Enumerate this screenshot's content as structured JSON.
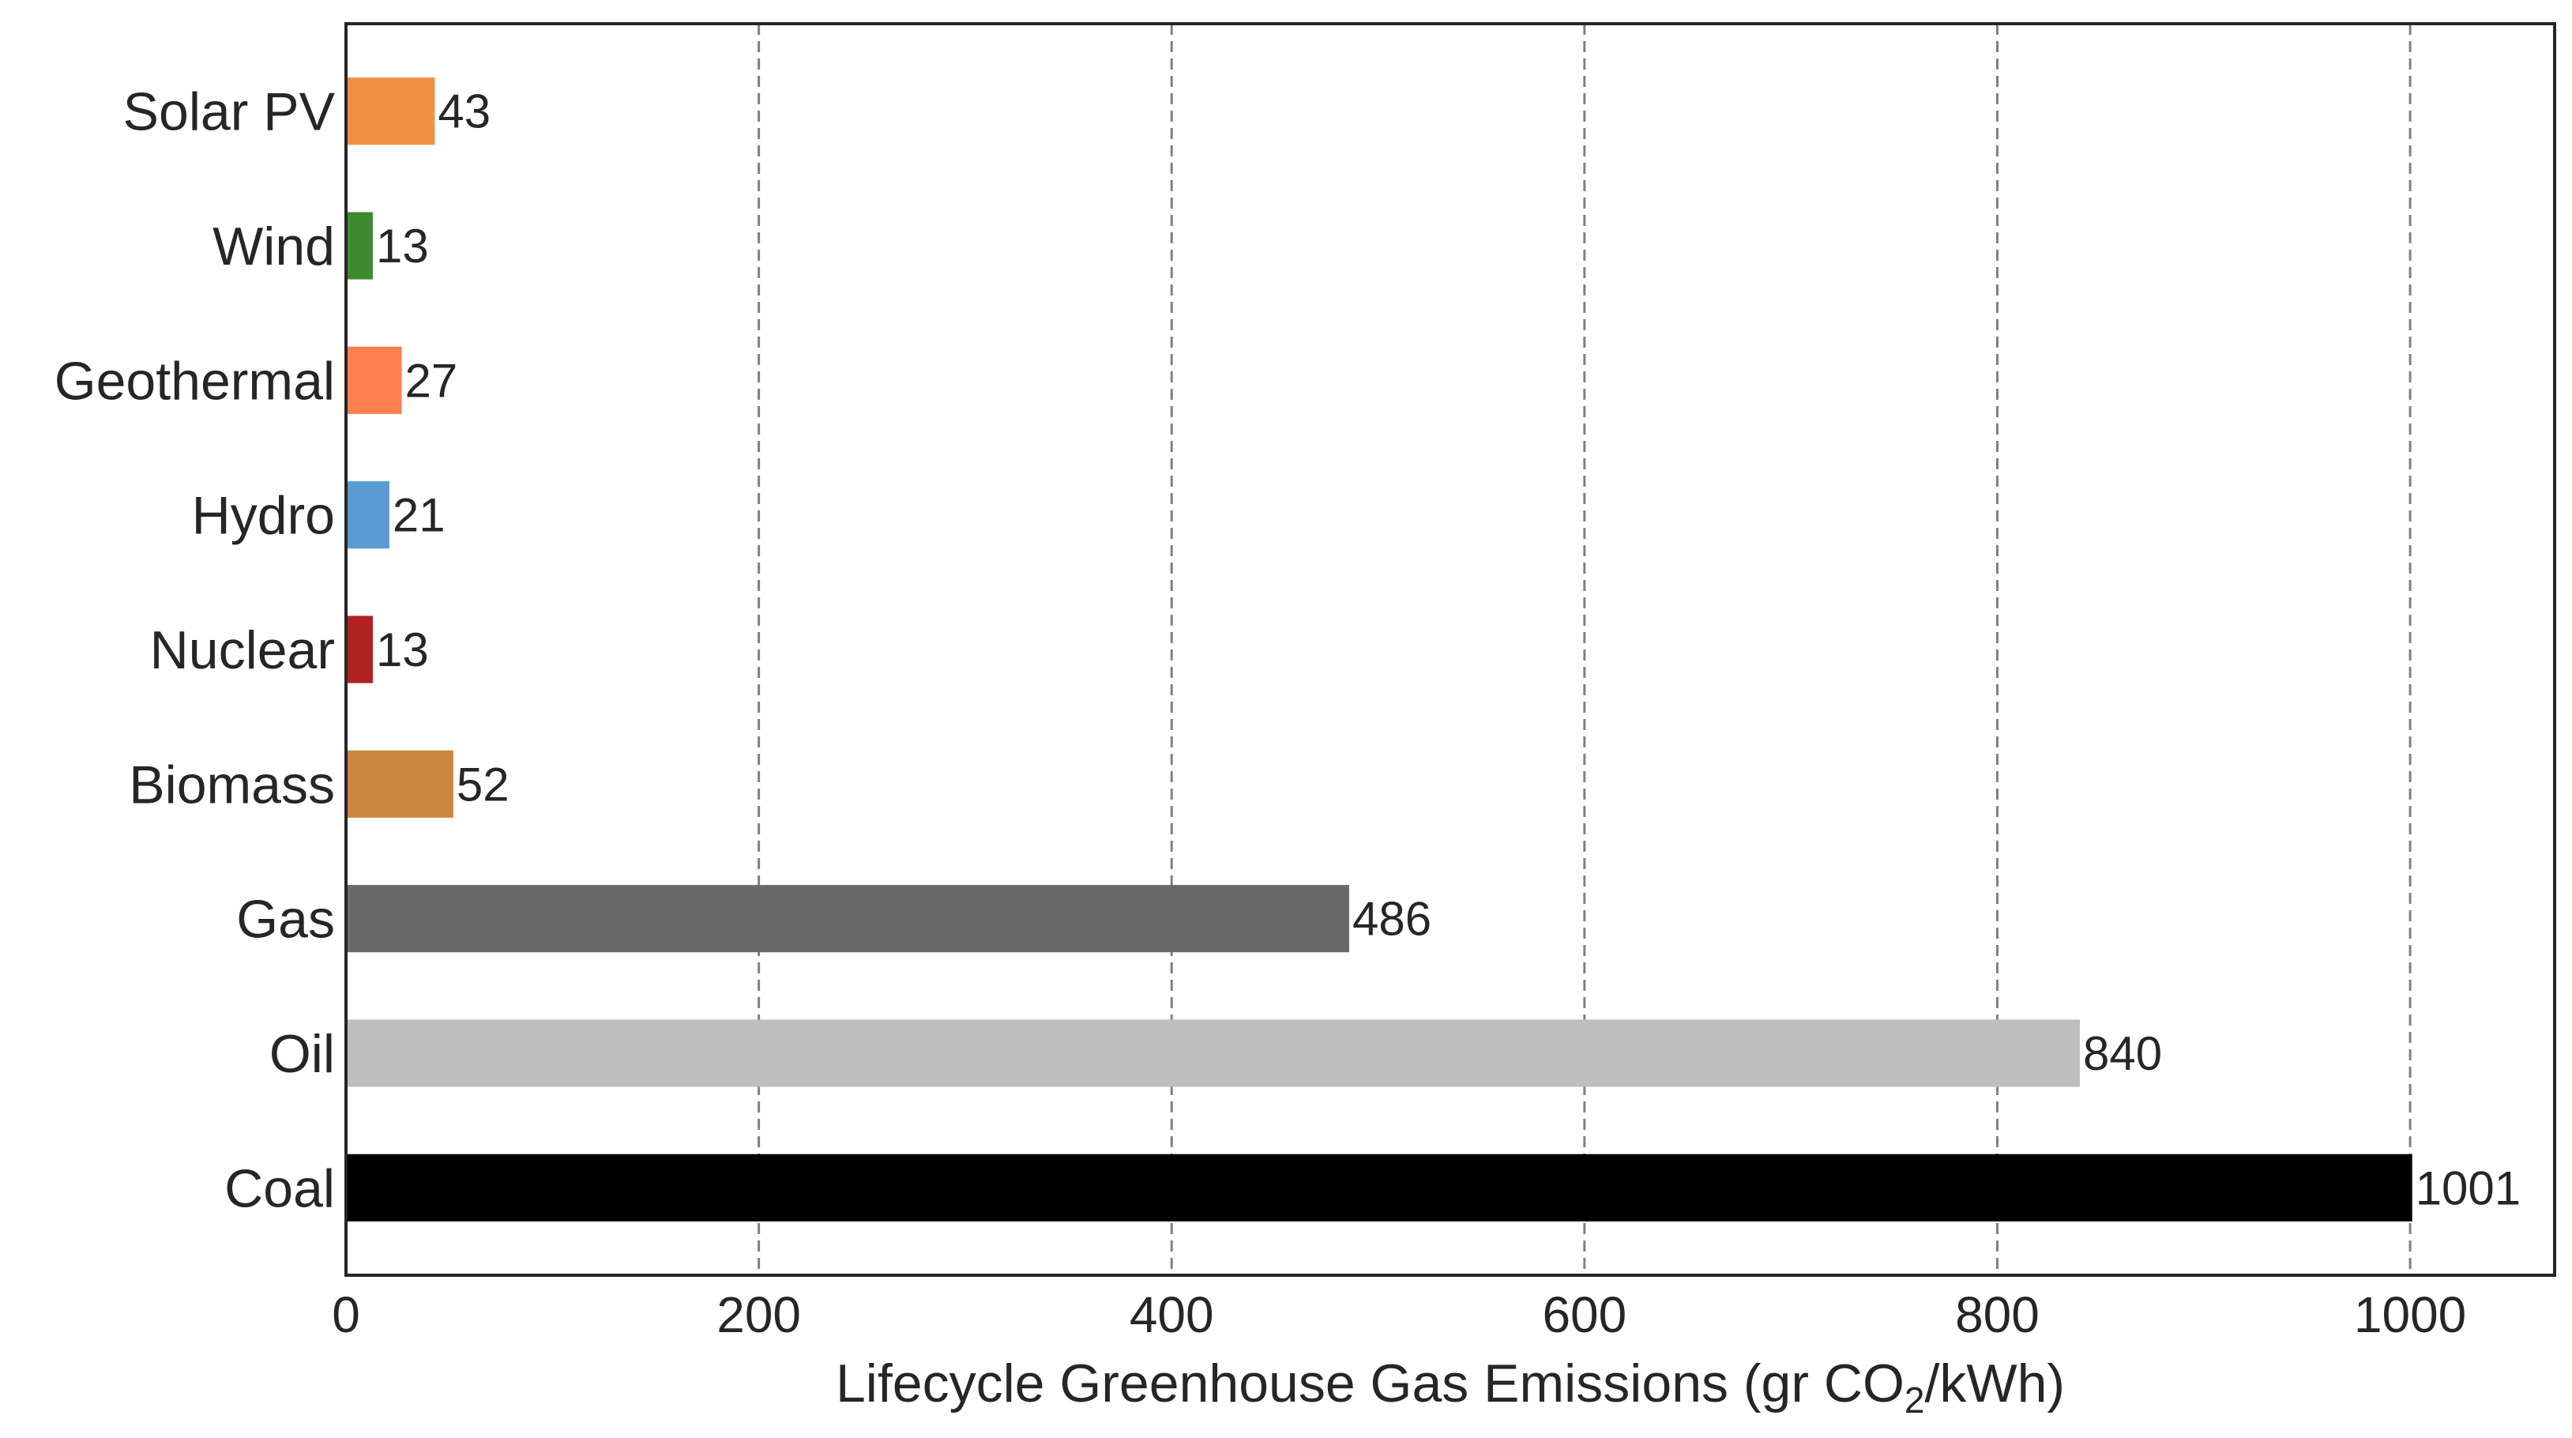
{
  "chart_data": {
    "type": "bar",
    "orientation": "horizontal",
    "categories": [
      "Solar PV",
      "Wind",
      "Geothermal",
      "Hydro",
      "Nuclear",
      "Biomass",
      "Gas",
      "Oil",
      "Coal"
    ],
    "values": [
      43,
      13,
      27,
      21,
      13,
      52,
      486,
      840,
      1001
    ],
    "value_labels": [
      "43",
      "13",
      "27",
      "21",
      "13",
      "52",
      "486",
      "840",
      "1001"
    ],
    "colors": [
      "#F28E43",
      "#3F8A2F",
      "#FF7F50",
      "#5B9BD5",
      "#B22222",
      "#CD853F",
      "#696969",
      "#BEBEBE",
      "#000000"
    ],
    "title": "",
    "xlabel_prefix": "Lifecycle Greenhouse Gas Emissions (gr CO",
    "xlabel_subscript": "2",
    "xlabel_suffix": "/kWh)",
    "ylabel": "",
    "xlim": [
      0,
      1070
    ],
    "xticks": [
      0,
      200,
      400,
      600,
      800,
      1000
    ],
    "xtick_labels": [
      "0",
      "200",
      "400",
      "600",
      "800",
      "1000"
    ],
    "grid": "vertical dashed",
    "legend": "none"
  }
}
